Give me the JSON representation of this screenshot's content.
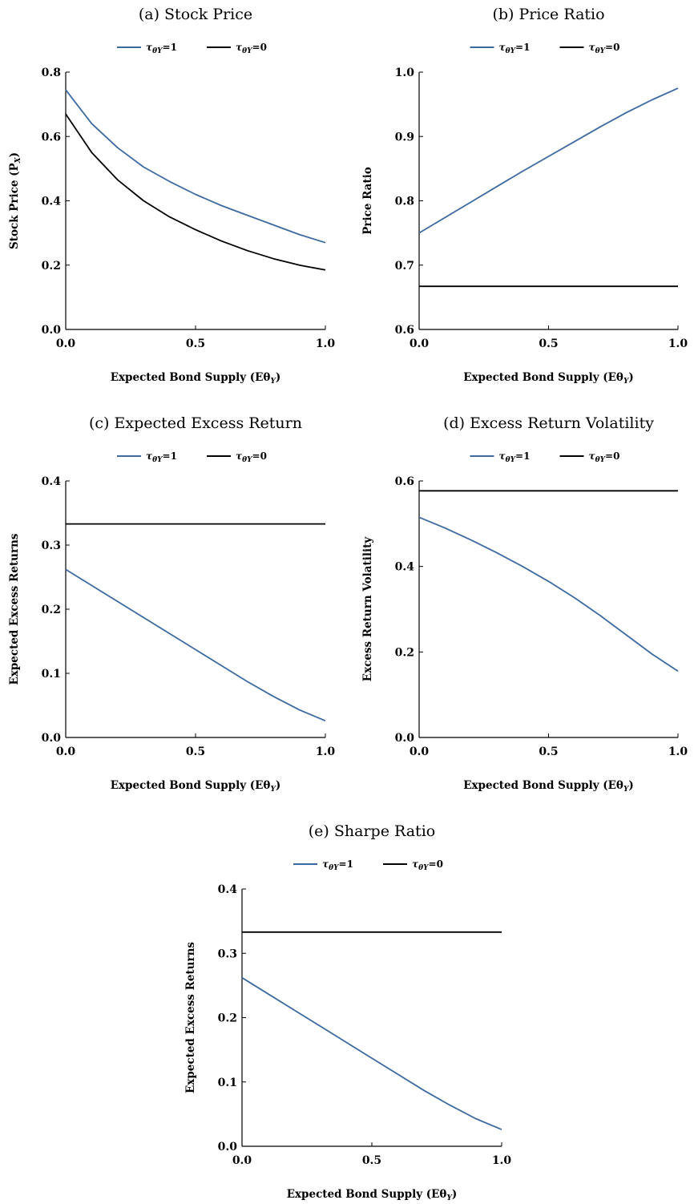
{
  "figure": {
    "colors": {
      "tau1": "#3c6aa0",
      "tau0": "#000000"
    },
    "legend": [
      {
        "key": "tau1",
        "label_main": "τ",
        "label_sub": "θY",
        "label_val": "=1"
      },
      {
        "key": "tau0",
        "label_main": "τ",
        "label_sub": "θY",
        "label_val": "=0"
      }
    ],
    "xlabel_main": "Expected Bond Supply (Eθ",
    "xlabel_sub": "Y",
    "xlabel_end": ")"
  },
  "chart_data": [
    {
      "type": "line",
      "title": "(a) Stock Price",
      "ylabel": "Stock Price (P",
      "ylabel_sub": "X",
      "ylabel_end": ")",
      "xlim": [
        0,
        1
      ],
      "ylim": [
        0,
        0.8
      ],
      "xticks": [
        "0.0",
        "0.5",
        "1.0"
      ],
      "yticks": [
        "0.0",
        "0.2",
        "0.4",
        "0.6",
        "0.8"
      ],
      "x": [
        0.0,
        0.1,
        0.2,
        0.3,
        0.4,
        0.5,
        0.6,
        0.7,
        0.8,
        0.9,
        1.0
      ],
      "series": [
        {
          "key": "tau1",
          "values": [
            0.745,
            0.64,
            0.565,
            0.505,
            0.46,
            0.42,
            0.385,
            0.355,
            0.325,
            0.295,
            0.27
          ]
        },
        {
          "key": "tau0",
          "values": [
            0.67,
            0.55,
            0.465,
            0.4,
            0.35,
            0.31,
            0.275,
            0.245,
            0.22,
            0.2,
            0.185
          ]
        }
      ]
    },
    {
      "type": "line",
      "title": "(b) Price Ratio",
      "ylabel": "Price Ratio",
      "xlim": [
        0,
        1
      ],
      "ylim": [
        0.6,
        1.0
      ],
      "xticks": [
        "0.0",
        "0.5",
        "1.0"
      ],
      "yticks": [
        "0.6",
        "0.7",
        "0.8",
        "0.9",
        "1.0"
      ],
      "x": [
        0.0,
        0.1,
        0.2,
        0.3,
        0.4,
        0.5,
        0.6,
        0.7,
        0.8,
        0.9,
        1.0
      ],
      "series": [
        {
          "key": "tau1",
          "values": [
            0.75,
            0.774,
            0.798,
            0.822,
            0.846,
            0.869,
            0.892,
            0.915,
            0.937,
            0.957,
            0.975
          ]
        },
        {
          "key": "tau0",
          "values": [
            0.667,
            0.667,
            0.667,
            0.667,
            0.667,
            0.667,
            0.667,
            0.667,
            0.667,
            0.667,
            0.667
          ]
        }
      ]
    },
    {
      "type": "line",
      "title": "(c) Expected Excess Return",
      "ylabel": "Expected Excess Returns",
      "xlim": [
        0,
        1
      ],
      "ylim": [
        0,
        0.4
      ],
      "xticks": [
        "0.0",
        "0.5",
        "1.0"
      ],
      "yticks": [
        "0.0",
        "0.1",
        "0.2",
        "0.3",
        "0.4"
      ],
      "x": [
        0.0,
        0.1,
        0.2,
        0.3,
        0.4,
        0.5,
        0.6,
        0.7,
        0.8,
        0.9,
        1.0
      ],
      "series": [
        {
          "key": "tau1",
          "values": [
            0.262,
            0.237,
            0.212,
            0.187,
            0.162,
            0.137,
            0.112,
            0.087,
            0.064,
            0.043,
            0.026
          ]
        },
        {
          "key": "tau0",
          "values": [
            0.333,
            0.333,
            0.333,
            0.333,
            0.333,
            0.333,
            0.333,
            0.333,
            0.333,
            0.333,
            0.333
          ]
        }
      ]
    },
    {
      "type": "line",
      "title": "(d) Excess Return Volatility",
      "ylabel": "Excess Return Volatility",
      "xlim": [
        0,
        1
      ],
      "ylim": [
        0,
        0.6
      ],
      "xticks": [
        "0.0",
        "0.5",
        "1.0"
      ],
      "yticks": [
        "0.0",
        "0.2",
        "0.4",
        "0.6"
      ],
      "x": [
        0.0,
        0.1,
        0.2,
        0.3,
        0.4,
        0.5,
        0.6,
        0.7,
        0.8,
        0.9,
        1.0
      ],
      "series": [
        {
          "key": "tau1",
          "values": [
            0.515,
            0.49,
            0.462,
            0.432,
            0.4,
            0.365,
            0.327,
            0.285,
            0.24,
            0.195,
            0.155
          ]
        },
        {
          "key": "tau0",
          "values": [
            0.577,
            0.577,
            0.577,
            0.577,
            0.577,
            0.577,
            0.577,
            0.577,
            0.577,
            0.577,
            0.577
          ]
        }
      ]
    },
    {
      "type": "line",
      "title": "(e) Sharpe Ratio",
      "ylabel": "Expected Excess Returns",
      "xlim": [
        0,
        1
      ],
      "ylim": [
        0,
        0.4
      ],
      "xticks": [
        "0.0",
        "0.5",
        "1.0"
      ],
      "yticks": [
        "0.0",
        "0.1",
        "0.2",
        "0.3",
        "0.4"
      ],
      "x": [
        0.0,
        0.1,
        0.2,
        0.3,
        0.4,
        0.5,
        0.6,
        0.7,
        0.8,
        0.9,
        1.0
      ],
      "series": [
        {
          "key": "tau1",
          "values": [
            0.262,
            0.237,
            0.212,
            0.187,
            0.162,
            0.137,
            0.112,
            0.087,
            0.064,
            0.043,
            0.026
          ]
        },
        {
          "key": "tau0",
          "values": [
            0.333,
            0.333,
            0.333,
            0.333,
            0.333,
            0.333,
            0.333,
            0.333,
            0.333,
            0.333,
            0.333
          ]
        }
      ]
    }
  ]
}
